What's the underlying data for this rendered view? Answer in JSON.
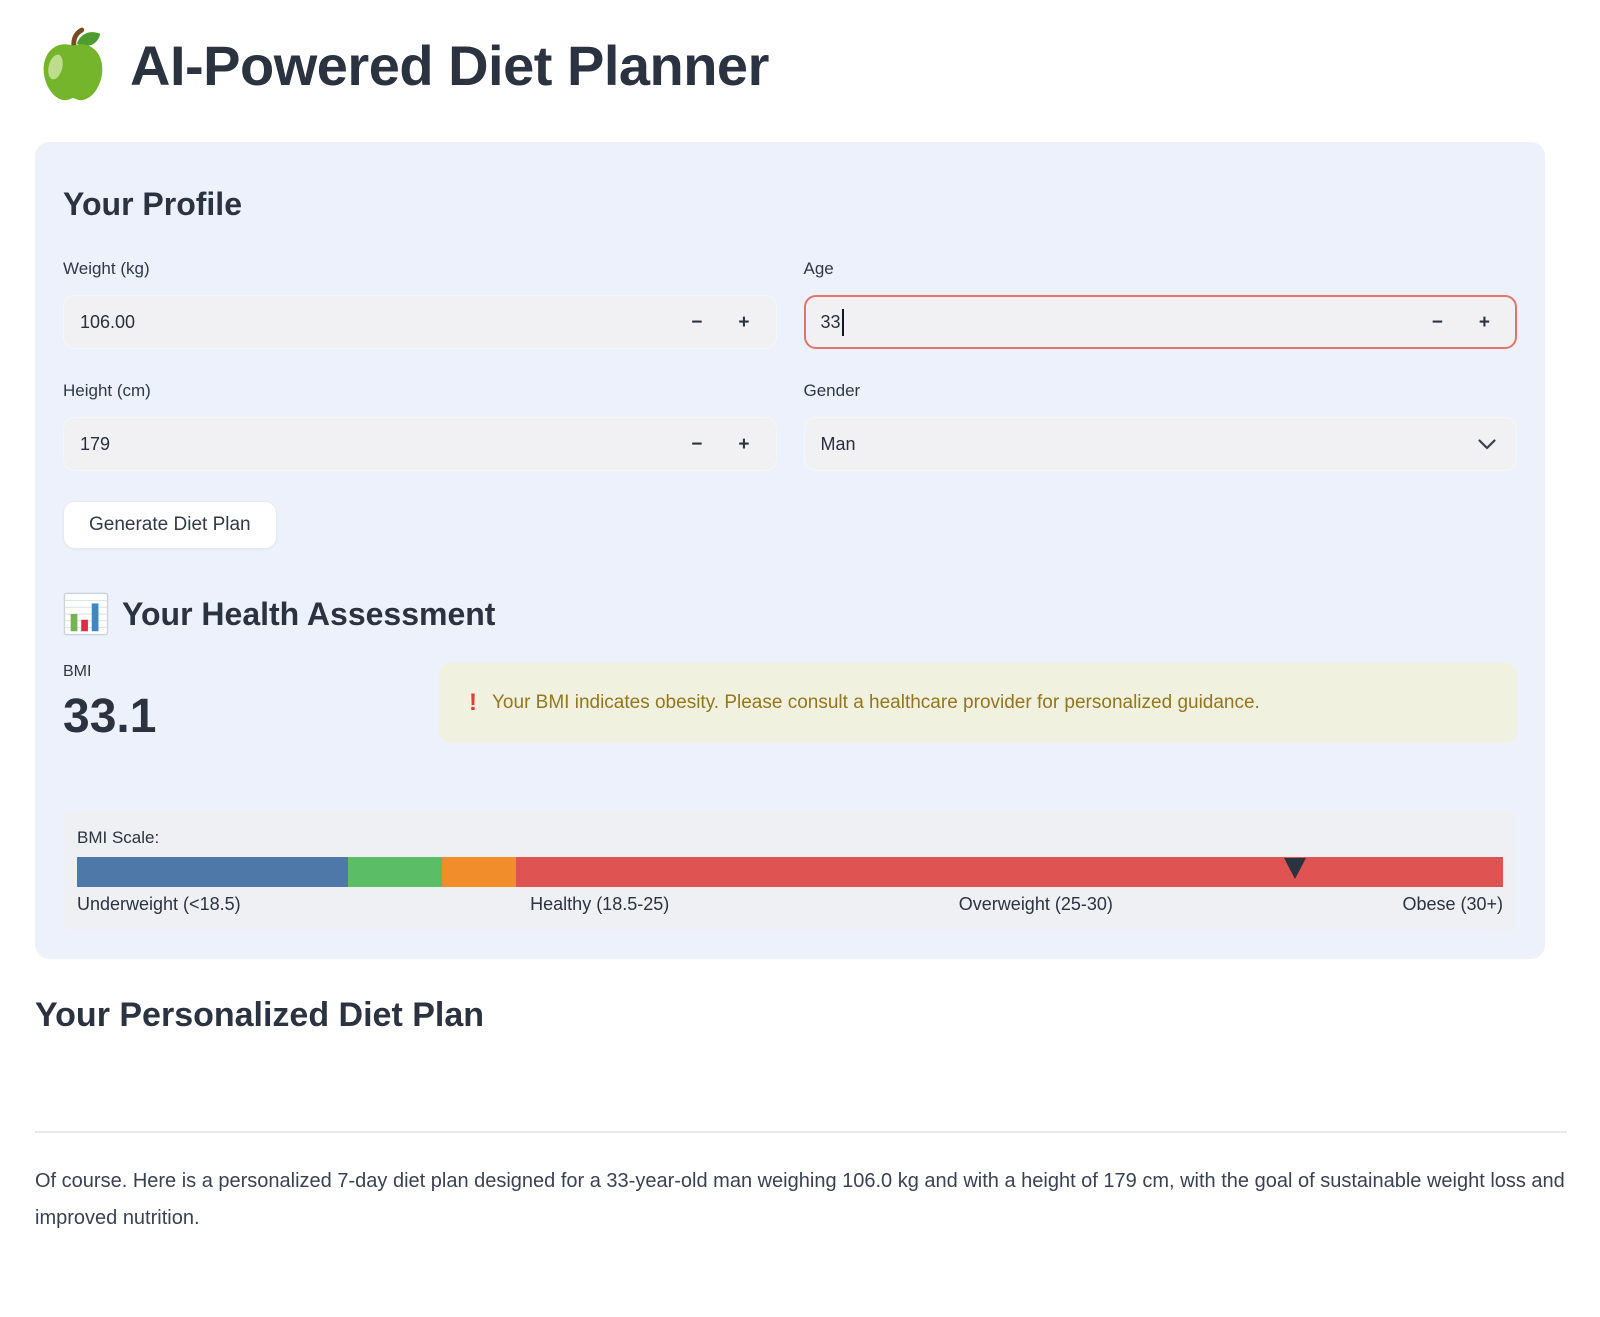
{
  "header": {
    "title": "AI-Powered Diet Planner"
  },
  "profile": {
    "heading": "Your Profile",
    "fields": {
      "weight": {
        "label": "Weight (kg)",
        "value": "106.00"
      },
      "age": {
        "label": "Age",
        "value": "33"
      },
      "height": {
        "label": "Height (cm)",
        "value": "179"
      },
      "gender": {
        "label": "Gender",
        "value": "Man"
      }
    },
    "stepper": {
      "minus": "−",
      "plus": "+"
    },
    "generate_button": "Generate Diet Plan"
  },
  "assessment": {
    "heading": "Your Health Assessment",
    "bmi_label": "BMI",
    "bmi_value": "33.1",
    "warning": {
      "icon": "!",
      "text": "Your BMI indicates obesity. Please consult a healthcare provider for personalized guidance."
    }
  },
  "bmi_scale": {
    "title": "BMI Scale:",
    "segments": [
      {
        "name": "underweight",
        "color": "#4d78a8",
        "width_pct": 19.0
      },
      {
        "name": "healthy",
        "color": "#5bbd65",
        "width_pct": 6.6
      },
      {
        "name": "overweight",
        "color": "#f28d2c",
        "width_pct": 5.2
      },
      {
        "name": "obese",
        "color": "#df5353",
        "width_pct": 69.2
      }
    ],
    "labels": [
      "Underweight (<18.5)",
      "Healthy (18.5-25)",
      "Overweight (25-30)",
      "Obese (30+)"
    ],
    "marker_pct": 85.4,
    "marker_color": "#2b3340"
  },
  "plan": {
    "heading": "Your Personalized Diet Plan",
    "paragraph": "Of course. Here is a personalized 7-day diet plan designed for a 33-year-old man weighing 106.0 kg and with a height of 179 cm, with the goal of sustainable weight loss and improved nutrition."
  },
  "colors": {
    "panel_bg": "#edf1fb",
    "input_bg": "#f1f1f4",
    "focus_border": "#e2746c",
    "warning_bg": "#f0f1de",
    "warning_text": "#93761d",
    "warning_icon": "#e23b3b",
    "scale_card_bg": "#eef0f3",
    "heading_text": "#2b3240"
  }
}
